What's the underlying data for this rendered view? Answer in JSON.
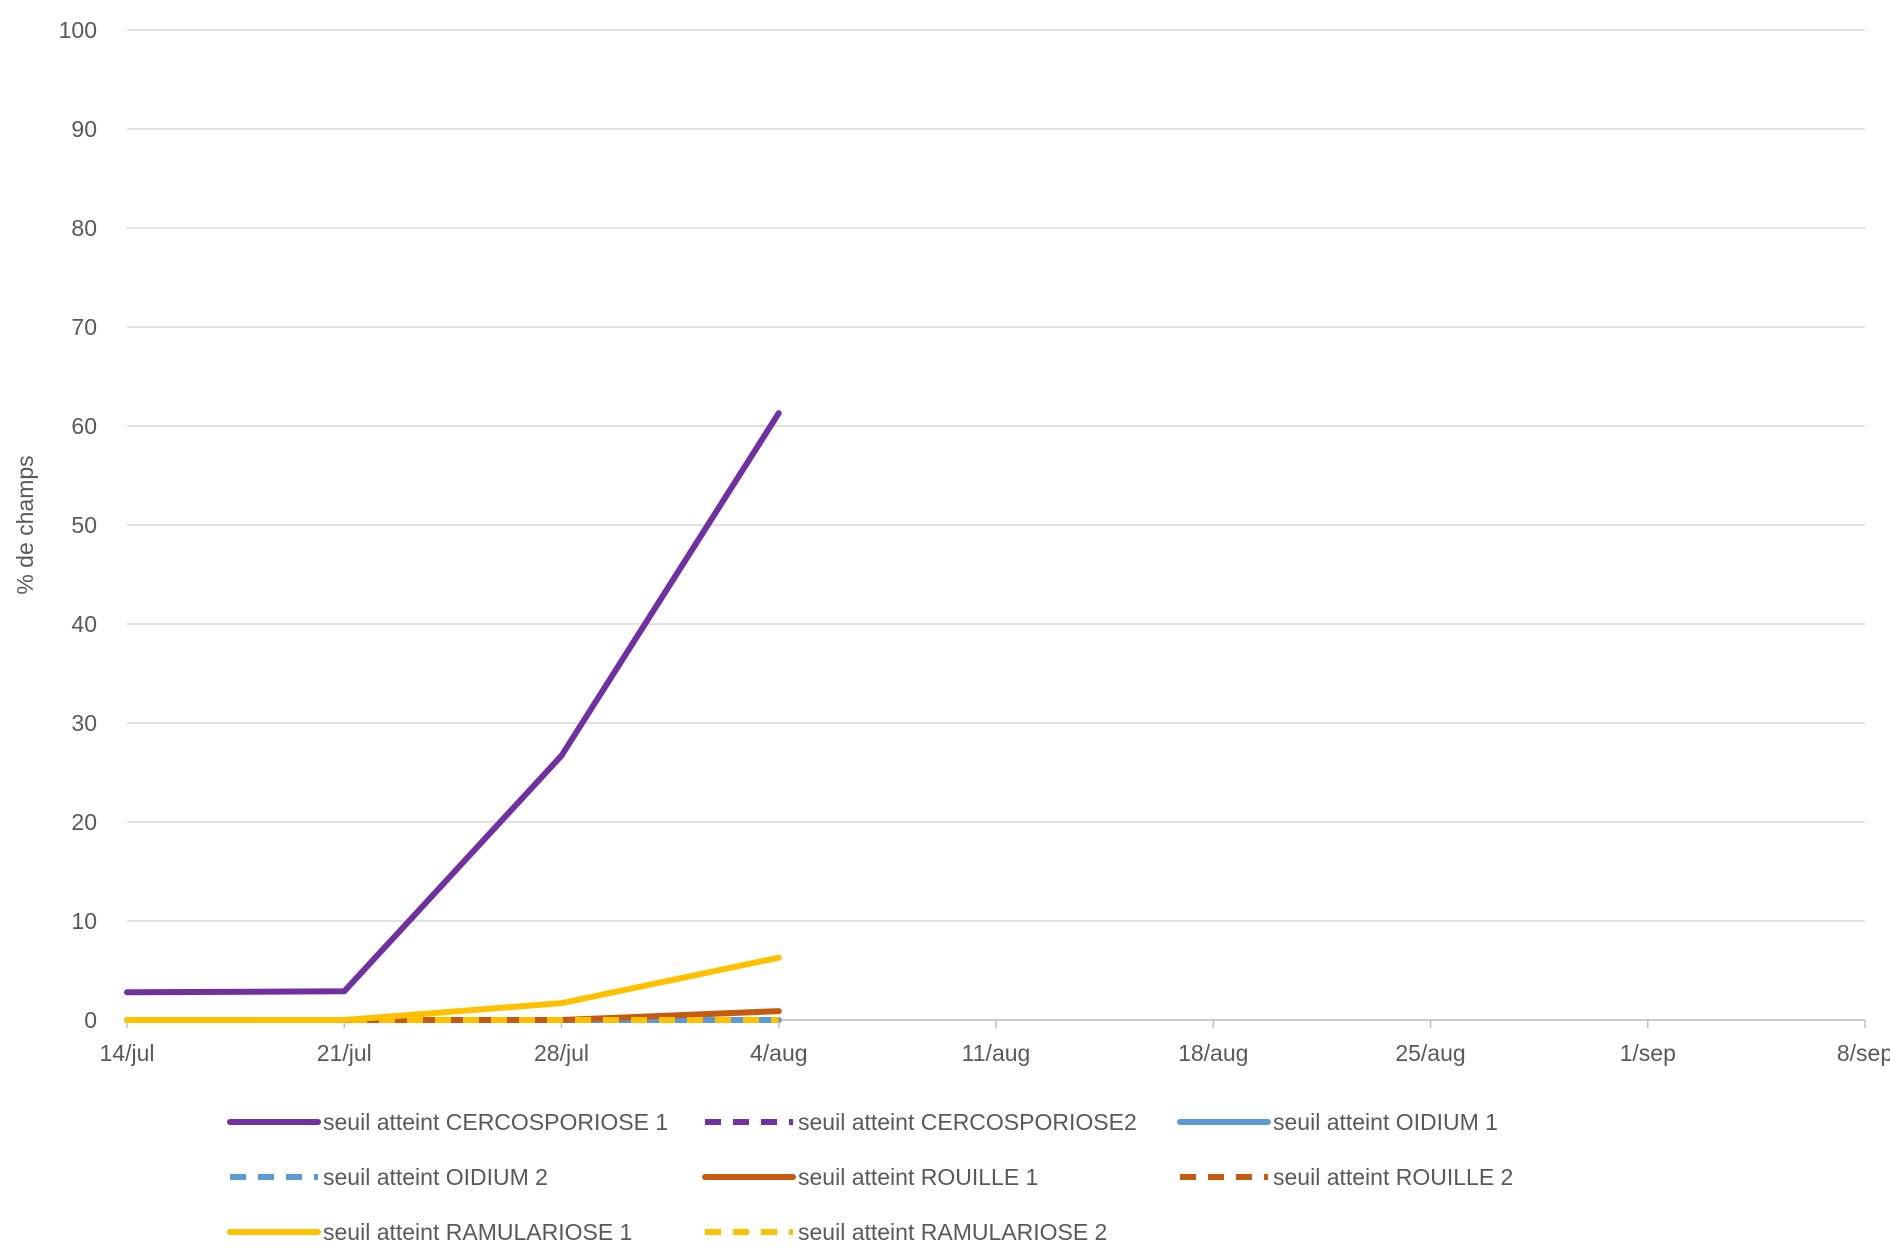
{
  "chart_data": {
    "type": "line",
    "title": "",
    "xlabel": "",
    "ylabel": "% de champs",
    "ylim": [
      0,
      100
    ],
    "y_ticks": [
      "0",
      "10",
      "20",
      "30",
      "40",
      "50",
      "60",
      "70",
      "80",
      "90",
      "100"
    ],
    "x_ticks": [
      "14/jul",
      "21/jul",
      "28/jul",
      "4/aug",
      "11/aug",
      "18/aug",
      "25/aug",
      "1/sep",
      "8/sep"
    ],
    "grid": "horizontal",
    "legend_position": "bottom",
    "categories": [
      "14/jul",
      "21/jul",
      "28/jul",
      "4/aug"
    ],
    "series": [
      {
        "name": "seuil atteint CERCOSPORIOSE 1",
        "color": "#7030A0",
        "dash": "solid",
        "values": [
          2.8,
          2.9,
          26.7,
          61.3
        ]
      },
      {
        "name": "seuil atteint CERCOSPORIOSE2",
        "color": "#7030A0",
        "dash": "dashed",
        "values": [
          0,
          0,
          0,
          0
        ]
      },
      {
        "name": "seuil atteint OIDIUM 1",
        "color": "#5B9BD5",
        "dash": "solid",
        "values": [
          0,
          0,
          0,
          0
        ]
      },
      {
        "name": "seuil atteint OIDIUM 2",
        "color": "#5B9BD5",
        "dash": "dashed",
        "values": [
          0,
          0,
          0,
          0
        ]
      },
      {
        "name": "seuil atteint ROUILLE 1",
        "color": "#C55A11",
        "dash": "solid",
        "values": [
          0,
          0,
          0,
          0.9
        ]
      },
      {
        "name": "seuil atteint ROUILLE 2",
        "color": "#C55A11",
        "dash": "dashed",
        "values": [
          0,
          0,
          0,
          0
        ]
      },
      {
        "name": "seuil atteint RAMULARIOSE 1",
        "color": "#FFC000",
        "dash": "solid",
        "values": [
          0,
          0,
          1.7,
          6.3
        ]
      },
      {
        "name": "seuil atteint RAMULARIOSE 2",
        "color": "#FFC000",
        "dash": "dashed",
        "values": [
          0,
          0,
          0,
          0
        ]
      }
    ]
  }
}
